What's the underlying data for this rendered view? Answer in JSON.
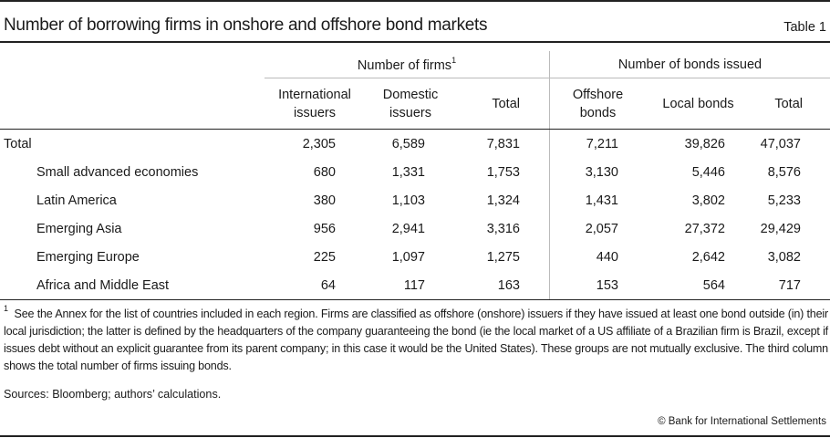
{
  "title": "Number of borrowing firms in onshore and offshore bond markets",
  "table_number": "Table 1",
  "group_headers": {
    "firms": "Number of firms",
    "firms_note": "1",
    "bonds": "Number of bonds issued"
  },
  "columns": [
    [
      "International",
      "issuers"
    ],
    [
      "Domestic",
      "issuers"
    ],
    [
      "Total",
      ""
    ],
    [
      "Offshore",
      "bonds"
    ],
    [
      "Local bonds",
      ""
    ],
    [
      "Total",
      ""
    ]
  ],
  "rows": [
    {
      "label": "Total",
      "values": [
        "2,305",
        "6,589",
        "7,831",
        "7,211",
        "39,826",
        "47,037"
      ]
    },
    {
      "label": "Small advanced economies",
      "values": [
        "680",
        "1,331",
        "1,753",
        "3,130",
        "5,446",
        "8,576"
      ]
    },
    {
      "label": "Latin America",
      "values": [
        "380",
        "1,103",
        "1,324",
        "1,431",
        "3,802",
        "5,233"
      ]
    },
    {
      "label": "Emerging Asia",
      "values": [
        "956",
        "2,941",
        "3,316",
        "2,057",
        "27,372",
        "29,429"
      ]
    },
    {
      "label": "Emerging Europe",
      "values": [
        "225",
        "1,097",
        "1,275",
        "440",
        "2,642",
        "3,082"
      ]
    },
    {
      "label": "Africa and Middle East",
      "values": [
        "64",
        "117",
        "163",
        "153",
        "564",
        "717"
      ]
    }
  ],
  "footnote_mark": "1",
  "footnote": "See the Annex for the list of countries included in each region. Firms are classified as offshore (onshore) issuers if they have issued at least one bond outside (in) their local jurisdiction; the latter is defined by the headquarters of the company guaranteeing the bond (ie the local market of a US affiliate of a Brazilian firm is Brazil, except if issues debt without an explicit guarantee from its parent company; in this case it would be the United States). These groups are not mutually exclusive. The third column shows the total number of firms issuing bonds.",
  "sources": "Sources: Bloomberg; authors’ calculations.",
  "copyright": "© Bank for International Settlements"
}
